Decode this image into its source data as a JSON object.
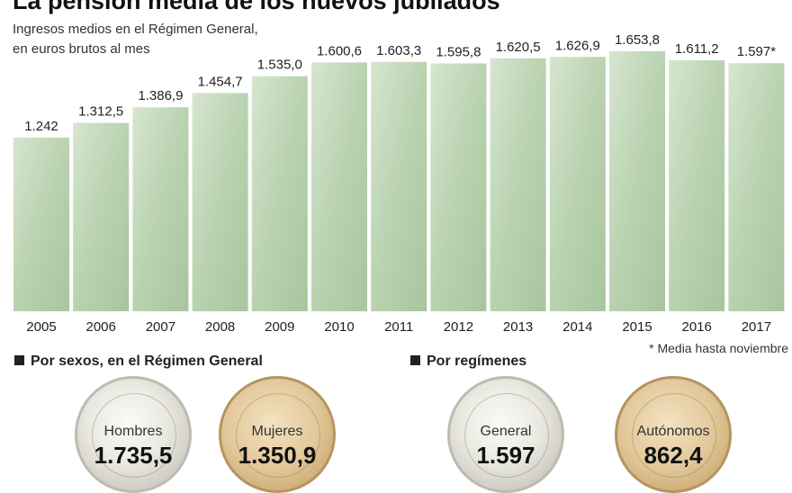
{
  "title": "La pensión media de los nuevos jubilados",
  "subtitle": [
    "Ingresos medios en el Régimen General,",
    "en euros brutos al mes"
  ],
  "footnote": "* Media hasta noviembre",
  "chart_data": {
    "type": "bar",
    "title": "La pensión media de los nuevos jubilados",
    "subtitle": "Ingresos medios en el Régimen General, en euros brutos al mes",
    "categories": [
      "2005",
      "2006",
      "2007",
      "2008",
      "2009",
      "2010",
      "2011",
      "2012",
      "2013",
      "2014",
      "2015",
      "2016",
      "2017"
    ],
    "values": [
      1242,
      1312.5,
      1386.9,
      1454.7,
      1535.0,
      1600.6,
      1603.3,
      1595.8,
      1620.5,
      1626.9,
      1653.8,
      1611.2,
      1597
    ],
    "data_labels": [
      "1.242",
      "1.312,5",
      "1.386,9",
      "1.454,7",
      "1.535,0",
      "1.600,6",
      "1.603,3",
      "1.595,8",
      "1.620,5",
      "1.626,9",
      "1.653,8",
      "1.611,2",
      "1.597*"
    ],
    "xlabel": "",
    "ylabel": "",
    "ylim": [
      0,
      1760
    ],
    "grid": false,
    "legend": "none",
    "bar_color": "#bcd5b4"
  },
  "sections": {
    "sexos": {
      "heading": "Por sexos, en el Régimen General",
      "coins": [
        {
          "label": "Hombres",
          "value": "1.735,5",
          "style": "silver"
        },
        {
          "label": "Mujeres",
          "value": "1.350,9",
          "style": "gold"
        }
      ]
    },
    "regimenes": {
      "heading": "Por regímenes",
      "coins": [
        {
          "label": "General",
          "value": "1.597",
          "style": "silver"
        },
        {
          "label": "Autónomos",
          "value": "862,4",
          "style": "gold"
        }
      ]
    }
  }
}
